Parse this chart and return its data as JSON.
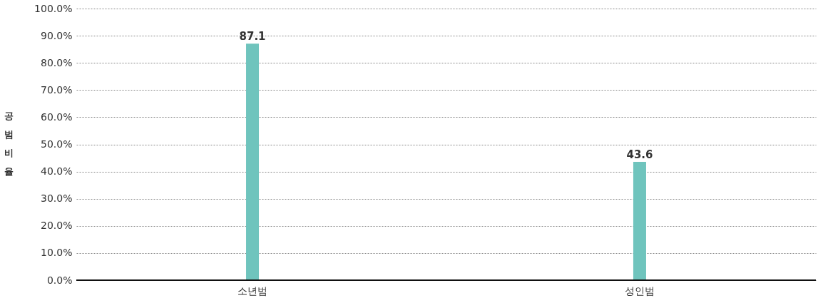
{
  "chart_data": {
    "type": "bar",
    "ylabel": "공범비율",
    "categories": [
      "소년범",
      "성인범"
    ],
    "values": [
      87.1,
      43.6
    ],
    "color": "#6fc4bd",
    "ylim": [
      0,
      100
    ],
    "yticks": [
      {
        "value": 0,
        "label": "0.0%"
      },
      {
        "value": 10,
        "label": "10.0%"
      },
      {
        "value": 20,
        "label": "20.0%"
      },
      {
        "value": 30,
        "label": "30.0%"
      },
      {
        "value": 40,
        "label": "40.0%"
      },
      {
        "value": 50,
        "label": "50.0%"
      },
      {
        "value": 60,
        "label": "60.0%"
      },
      {
        "value": 70,
        "label": "70.0%"
      },
      {
        "value": 80,
        "label": "80.0%"
      },
      {
        "value": 90,
        "label": "90.0%"
      },
      {
        "value": 100,
        "label": "100.0%"
      }
    ],
    "grid": "y",
    "data_labels": true
  }
}
